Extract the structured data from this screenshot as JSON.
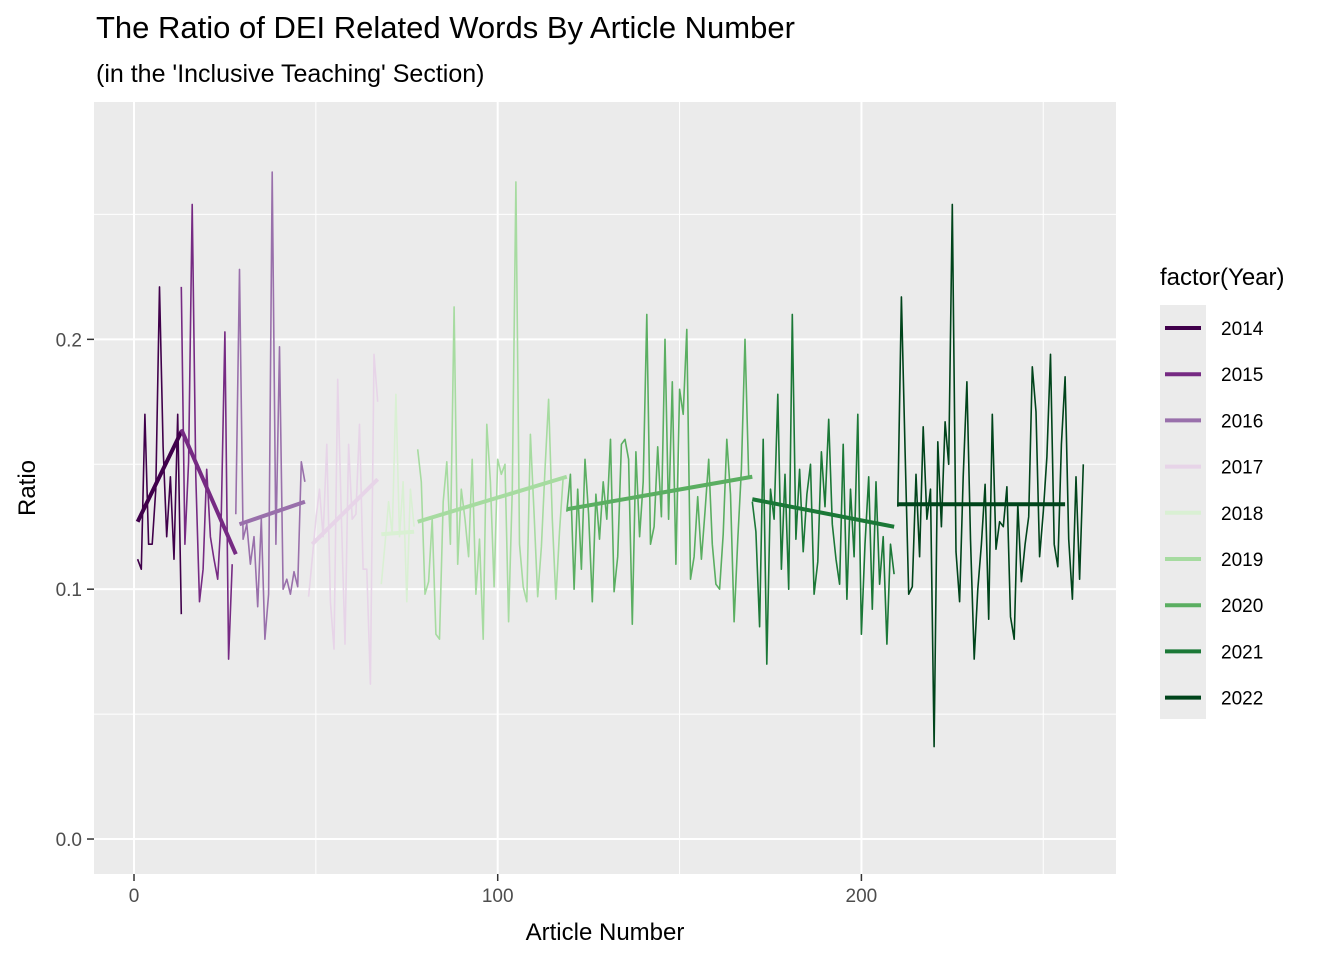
{
  "chart_data": {
    "type": "line",
    "title": "The Ratio of DEI Related Words By Article Number",
    "subtitle": "(in the 'Inclusive Teaching' Section)",
    "xlabel": "Article Number",
    "ylabel": "Ratio",
    "xlim": [
      -11,
      270
    ],
    "ylim": [
      -0.014,
      0.295
    ],
    "x_ticks": [
      0,
      100,
      200
    ],
    "y_ticks": [
      0.0,
      0.1,
      0.2
    ],
    "x_tick_labels": [
      "0",
      "100",
      "200"
    ],
    "y_tick_labels": [
      "0.0",
      "0.1",
      "0.2"
    ],
    "grid": true,
    "background": "#ebebeb",
    "legend": {
      "title": "factor(Year)",
      "position": "right"
    },
    "series": [
      {
        "name": "2014",
        "color": "#40004b",
        "x": [
          1,
          2,
          3,
          4,
          5,
          6,
          7,
          8,
          9,
          10,
          11,
          12,
          13
        ],
        "y": [
          0.112,
          0.108,
          0.17,
          0.118,
          0.118,
          0.14,
          0.221,
          0.157,
          0.121,
          0.145,
          0.112,
          0.17,
          0.09
        ],
        "trend": [
          [
            1,
            0.127
          ],
          [
            13,
            0.163
          ]
        ]
      },
      {
        "name": "2015",
        "color": "#762a83",
        "x": [
          13,
          14,
          15,
          16,
          17,
          18,
          19,
          20,
          21,
          22,
          23,
          24,
          25,
          26,
          27
        ],
        "y": [
          0.221,
          0.118,
          0.151,
          0.254,
          0.145,
          0.095,
          0.108,
          0.148,
          0.121,
          0.112,
          0.104,
          0.13,
          0.203,
          0.072,
          0.11
        ],
        "trend": [
          [
            13,
            0.164
          ],
          [
            28,
            0.114
          ]
        ]
      },
      {
        "name": "2016",
        "color": "#9970ab",
        "x": [
          28,
          29,
          30,
          31,
          32,
          33,
          34,
          35,
          36,
          37,
          38,
          39,
          40,
          41,
          42,
          43,
          44,
          45,
          46,
          47
        ],
        "y": [
          0.13,
          0.228,
          0.12,
          0.126,
          0.11,
          0.121,
          0.093,
          0.128,
          0.08,
          0.098,
          0.267,
          0.118,
          0.197,
          0.1,
          0.104,
          0.098,
          0.107,
          0.101,
          0.151,
          0.143
        ],
        "trend": [
          [
            29,
            0.126
          ],
          [
            47,
            0.135
          ]
        ]
      },
      {
        "name": "2017",
        "color": "#e7d4e8",
        "x": [
          48,
          49,
          50,
          51,
          52,
          53,
          54,
          55,
          56,
          57,
          58,
          59,
          60,
          61,
          62,
          63,
          64,
          65,
          66,
          67
        ],
        "y": [
          0.097,
          0.112,
          0.128,
          0.14,
          0.121,
          0.158,
          0.095,
          0.076,
          0.184,
          0.13,
          0.078,
          0.158,
          0.128,
          0.13,
          0.166,
          0.108,
          0.108,
          0.062,
          0.194,
          0.175
        ],
        "trend": [
          [
            49,
            0.118
          ],
          [
            67,
            0.144
          ]
        ]
      },
      {
        "name": "2018",
        "color": "#d9f0d3",
        "x": [
          68,
          69,
          70,
          71,
          72,
          73,
          74,
          75,
          76,
          77
        ],
        "y": [
          0.102,
          0.118,
          0.135,
          0.122,
          0.178,
          0.121,
          0.143,
          0.095,
          0.14,
          0.125
        ],
        "trend": [
          [
            68,
            0.122
          ],
          [
            77,
            0.123
          ]
        ]
      },
      {
        "name": "2019",
        "color": "#a6dba0",
        "x": [
          78,
          79,
          80,
          81,
          82,
          83,
          84,
          85,
          86,
          87,
          88,
          89,
          90,
          91,
          92,
          93,
          94,
          95,
          96,
          97,
          98,
          99,
          100,
          101,
          102,
          103,
          104,
          105,
          106,
          107,
          108,
          109,
          110,
          111,
          112,
          113,
          114,
          115,
          116,
          117,
          118
        ],
        "y": [
          0.156,
          0.143,
          0.098,
          0.103,
          0.128,
          0.082,
          0.08,
          0.135,
          0.151,
          0.118,
          0.213,
          0.11,
          0.14,
          0.128,
          0.113,
          0.152,
          0.098,
          0.12,
          0.08,
          0.166,
          0.143,
          0.101,
          0.152,
          0.146,
          0.15,
          0.087,
          0.14,
          0.263,
          0.118,
          0.101,
          0.095,
          0.162,
          0.13,
          0.097,
          0.117,
          0.148,
          0.176,
          0.128,
          0.096,
          0.123,
          0.145
        ],
        "trend": [
          [
            78,
            0.127
          ],
          [
            119,
            0.145
          ]
        ]
      },
      {
        "name": "2020",
        "color": "#5aae61",
        "x": [
          119,
          120,
          121,
          122,
          123,
          124,
          125,
          126,
          127,
          128,
          129,
          130,
          131,
          132,
          133,
          134,
          135,
          136,
          137,
          138,
          139,
          140,
          141,
          142,
          143,
          144,
          145,
          146,
          147,
          148,
          149,
          150,
          151,
          152,
          153,
          154,
          155,
          156,
          157,
          158,
          159,
          160,
          161,
          162,
          163,
          164,
          165,
          166,
          167,
          168,
          169
        ],
        "y": [
          0.131,
          0.146,
          0.1,
          0.14,
          0.108,
          0.152,
          0.13,
          0.095,
          0.138,
          0.12,
          0.143,
          0.128,
          0.16,
          0.099,
          0.113,
          0.158,
          0.16,
          0.152,
          0.086,
          0.155,
          0.121,
          0.143,
          0.21,
          0.118,
          0.125,
          0.157,
          0.129,
          0.2,
          0.128,
          0.183,
          0.11,
          0.18,
          0.17,
          0.204,
          0.104,
          0.113,
          0.137,
          0.112,
          0.131,
          0.152,
          0.118,
          0.102,
          0.1,
          0.122,
          0.16,
          0.138,
          0.087,
          0.12,
          0.148,
          0.2,
          0.145
        ],
        "trend": [
          [
            119,
            0.132
          ],
          [
            170,
            0.145
          ]
        ]
      },
      {
        "name": "2021",
        "color": "#1b7837",
        "x": [
          170,
          171,
          172,
          173,
          174,
          175,
          176,
          177,
          178,
          179,
          180,
          181,
          182,
          183,
          184,
          185,
          186,
          187,
          188,
          189,
          190,
          191,
          192,
          193,
          194,
          195,
          196,
          197,
          198,
          199,
          200,
          201,
          202,
          203,
          204,
          205,
          206,
          207,
          208,
          209
        ],
        "y": [
          0.135,
          0.123,
          0.085,
          0.16,
          0.07,
          0.14,
          0.128,
          0.178,
          0.108,
          0.146,
          0.1,
          0.21,
          0.12,
          0.148,
          0.115,
          0.138,
          0.15,
          0.098,
          0.111,
          0.155,
          0.133,
          0.168,
          0.126,
          0.112,
          0.102,
          0.158,
          0.096,
          0.14,
          0.113,
          0.17,
          0.082,
          0.118,
          0.145,
          0.092,
          0.143,
          0.102,
          0.121,
          0.078,
          0.118,
          0.106
        ],
        "trend": [
          [
            170,
            0.136
          ],
          [
            209,
            0.125
          ]
        ]
      },
      {
        "name": "2022",
        "color": "#00441b",
        "x": [
          210,
          211,
          212,
          213,
          214,
          215,
          216,
          217,
          218,
          219,
          220,
          221,
          222,
          223,
          224,
          225,
          226,
          227,
          228,
          229,
          230,
          231,
          232,
          233,
          234,
          235,
          236,
          237,
          238,
          239,
          240,
          241,
          242,
          243,
          244,
          245,
          246,
          247,
          248,
          249,
          250,
          251,
          252,
          253,
          254,
          255,
          256,
          257,
          258,
          259,
          260,
          261
        ],
        "y": [
          0.133,
          0.217,
          0.155,
          0.098,
          0.101,
          0.146,
          0.113,
          0.165,
          0.128,
          0.14,
          0.037,
          0.159,
          0.125,
          0.167,
          0.15,
          0.254,
          0.115,
          0.095,
          0.145,
          0.183,
          0.12,
          0.072,
          0.1,
          0.118,
          0.142,
          0.088,
          0.17,
          0.116,
          0.127,
          0.125,
          0.141,
          0.089,
          0.08,
          0.134,
          0.103,
          0.118,
          0.129,
          0.189,
          0.171,
          0.113,
          0.131,
          0.153,
          0.194,
          0.118,
          0.109,
          0.158,
          0.185,
          0.12,
          0.096,
          0.145,
          0.104,
          0.15
        ],
        "trend": [
          [
            210,
            0.134
          ],
          [
            256,
            0.134
          ]
        ]
      }
    ]
  }
}
